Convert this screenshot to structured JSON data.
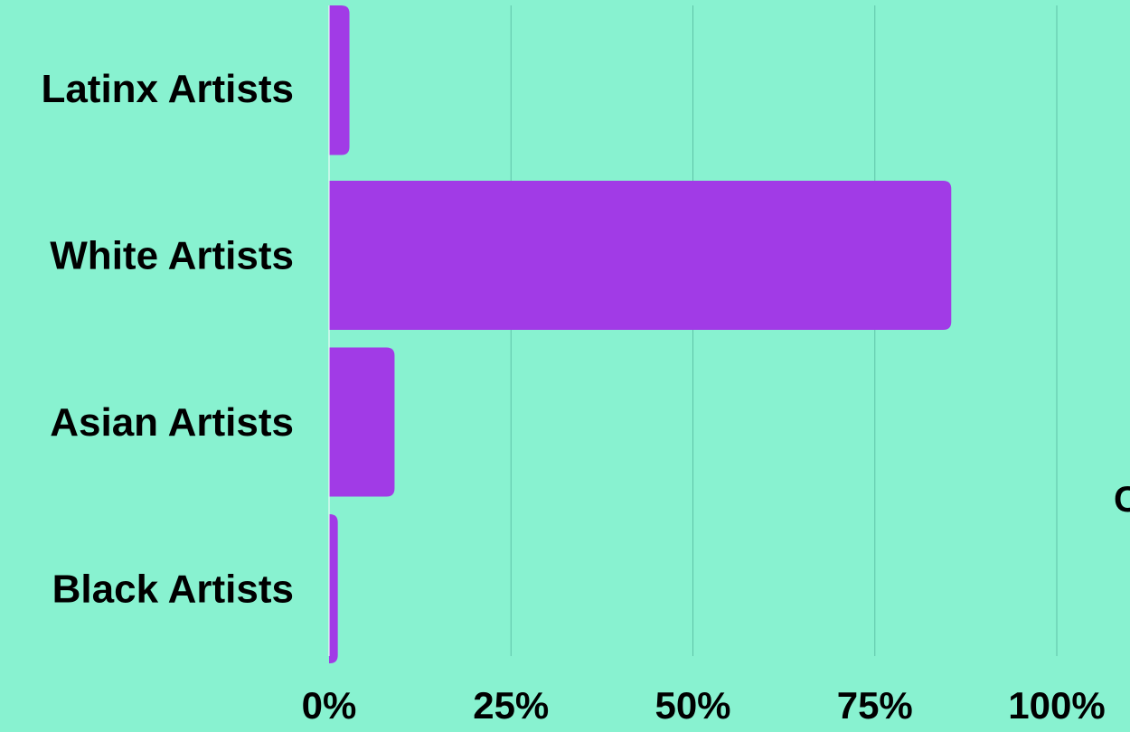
{
  "chart_data": {
    "type": "bar",
    "orientation": "horizontal",
    "categories": [
      "Latinx Artists",
      "White Artists",
      "Asian Artists",
      "Black Artists"
    ],
    "values": [
      2.8,
      85.5,
      9.0,
      1.2
    ],
    "unit": "%",
    "xlim": [
      0,
      100
    ],
    "x_ticks": [
      0,
      25,
      50,
      75,
      100
    ],
    "x_tick_labels": [
      "0%",
      "25%",
      "50%",
      "75%",
      "100%"
    ],
    "grid": true,
    "title": "",
    "xlabel": "",
    "ylabel": "",
    "edge_text": "C",
    "colors": {
      "background": "#88f2d0",
      "bar": "#a13be6",
      "grid": "#5fc3a7",
      "axis": "#ffffff",
      "text": "#000000"
    }
  }
}
